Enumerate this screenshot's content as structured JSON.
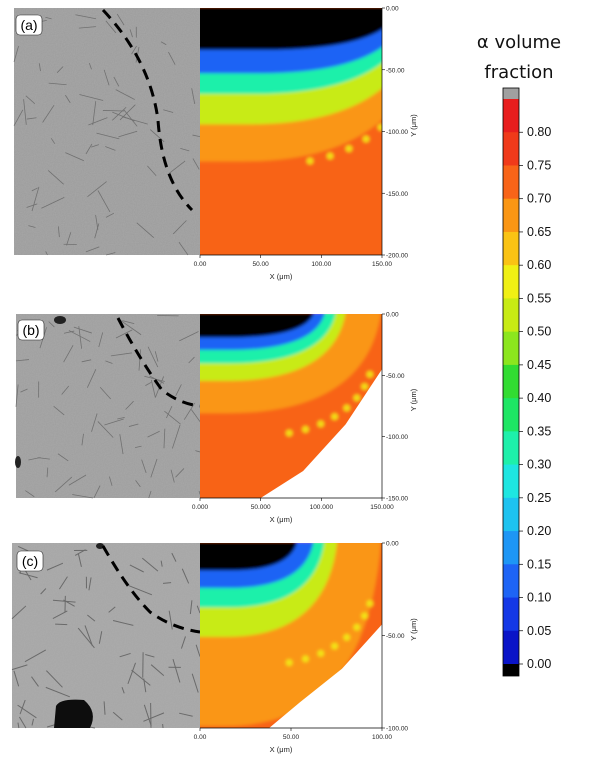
{
  "colorbar": {
    "title_line1": "α volume",
    "title_line2": "fraction",
    "ticks": [
      "0.00",
      "0.05",
      "0.10",
      "0.15",
      "0.20",
      "0.25",
      "0.30",
      "0.35",
      "0.40",
      "0.45",
      "0.50",
      "0.55",
      "0.60",
      "0.65",
      "0.70",
      "0.75",
      "0.80"
    ],
    "colors": [
      "#000000",
      "#0a14c8",
      "#1438e6",
      "#1e64f5",
      "#1e96f5",
      "#1ec3f0",
      "#1ee6e1",
      "#1ef0aa",
      "#1ee664",
      "#32dc32",
      "#8ce61e",
      "#c8eb14",
      "#f0f014",
      "#fac314",
      "#fa9614",
      "#f86418",
      "#f03a1a",
      "#e81e1e",
      "#a0a0a0"
    ]
  },
  "chart_data": [
    {
      "type": "heatmap",
      "panel_label": "(a)",
      "title": "",
      "xlabel": "X (μm)",
      "ylabel": "Y (μm)",
      "xlim": [
        0,
        150
      ],
      "ylim": [
        -200,
        0
      ],
      "x_ticks": [
        "0.00",
        "50.00",
        "100.00",
        "150.00"
      ],
      "y_ticks": [
        "0.00",
        "-50.00",
        "-100.00",
        "-150.00",
        "-200.00"
      ],
      "levels": [
        0,
        0.05,
        0.25,
        0.45,
        0.65,
        0.75
      ],
      "contours": [
        [
          10,
          0,
          185,
          0.51
        ],
        [
          16,
          0,
          171,
          0.42
        ],
        [
          22,
          0,
          157,
          0.34
        ],
        [
          28,
          0,
          146,
          0.28
        ],
        [
          34,
          0,
          133,
          0.2
        ]
      ],
      "domain_edge": []
    },
    {
      "type": "heatmap",
      "panel_label": "(b)",
      "title": "",
      "xlabel": "X (μm)",
      "ylabel": "Y (μm)",
      "xlim": [
        0,
        150
      ],
      "ylim": [
        -150,
        0
      ],
      "x_ticks": [
        "0.000",
        "50.000",
        "100.000",
        "150.000"
      ],
      "y_ticks": [
        "0.00",
        "-50.00",
        "-100.00",
        "-150.00"
      ],
      "levels": [
        0,
        0.05,
        0.25,
        0.45,
        0.65,
        0.75
      ],
      "contours": [
        [
          0,
          0,
          150,
          0.55
        ],
        [
          4,
          0,
          117,
          0.48
        ],
        [
          8,
          0,
          105,
          0.4
        ],
        [
          10,
          0,
          94,
          0.33
        ],
        [
          12,
          0,
          83,
          0.25
        ]
      ],
      "domain_edge": [
        [
          150,
          -45
        ],
        [
          120,
          -90
        ],
        [
          85,
          -128
        ],
        [
          50,
          -150
        ]
      ]
    },
    {
      "type": "heatmap",
      "panel_label": "(c)",
      "title": "",
      "xlabel": "X (μm)",
      "ylabel": "Y (μm)",
      "xlim": [
        0,
        100
      ],
      "ylim": [
        -100,
        0
      ],
      "x_ticks": [
        "0.00",
        "50.00",
        "100.00"
      ],
      "y_ticks": [
        "0.00",
        "-50.00",
        "-100.00"
      ],
      "levels": [
        0,
        0.05,
        0.25,
        0.45,
        0.65,
        0.75
      ],
      "contours": [
        [
          0,
          0,
          100,
          1.0
        ],
        [
          4,
          0,
          72,
          0.72
        ],
        [
          7,
          0,
          62,
          0.58
        ],
        [
          9,
          0,
          54,
          0.47
        ],
        [
          11,
          0,
          43,
          0.37
        ]
      ],
      "domain_edge": [
        [
          100,
          -44
        ],
        [
          78,
          -68
        ],
        [
          55,
          -86
        ],
        [
          38,
          -100
        ]
      ]
    }
  ]
}
